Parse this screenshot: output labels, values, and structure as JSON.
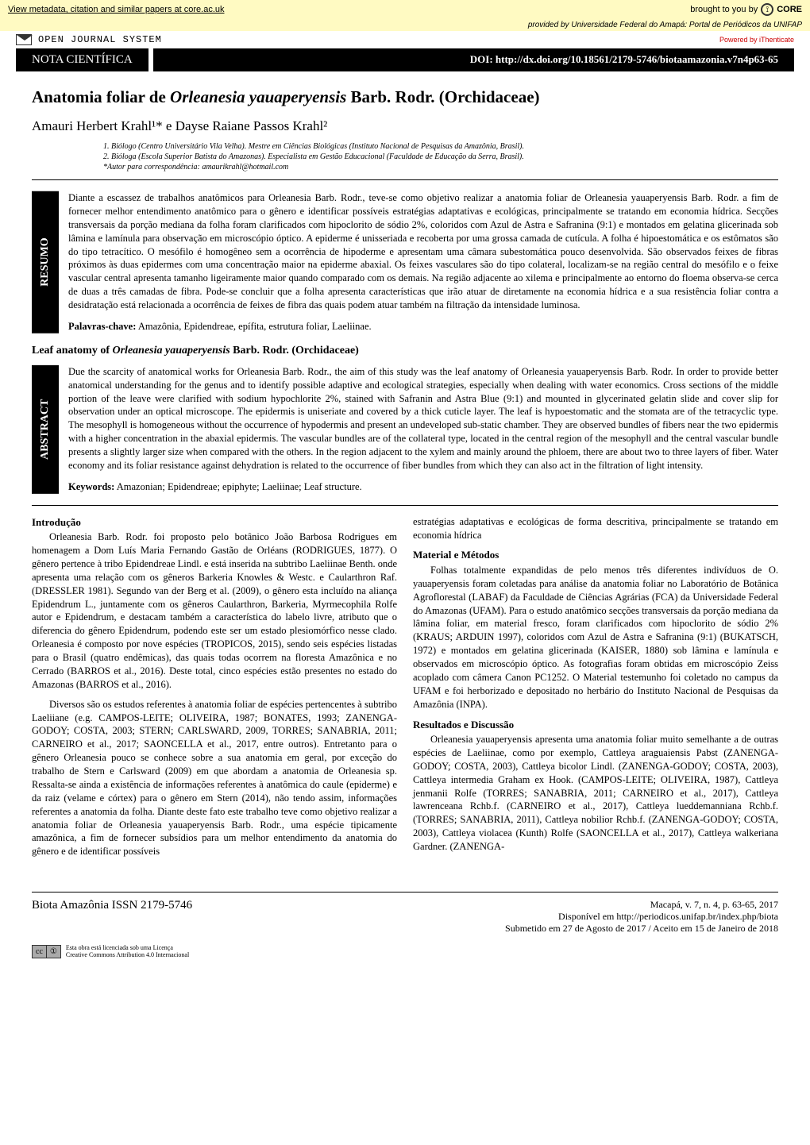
{
  "core": {
    "link_text": "View metadata, citation and similar papers at core.ac.uk",
    "brought": "brought to you by",
    "logo": "CORE"
  },
  "provided": "provided by Universidade Federal do Amapá: Portal de Periódicos da UNIFAP",
  "ojs": {
    "text": "OPEN JOURNAL SYSTEM",
    "powered": "Powered by iThenticate"
  },
  "header": {
    "nota": "NOTA CIENTÍFICA",
    "doi": "DOI: http://dx.doi.org/10.18561/2179-5746/biotaamazonia.v7n4p63-65"
  },
  "title": {
    "pre": "Anatomia foliar de ",
    "ital": "Orleanesia yauaperyensis",
    "post": " Barb. Rodr. (Orchidaceae)"
  },
  "authors": "Amauri Herbert Krahl¹* e Dayse Raiane Passos Krahl²",
  "affil": {
    "a1": "1. Biólogo (Centro Universitário Vila Velha). Mestre em Ciências Biológicas (Instituto Nacional de Pesquisas da Amazônia, Brasil).",
    "a2": "2. Bióloga (Escola Superior Batista do Amazonas). Especialista em Gestão Educacional (Faculdade de Educação da Serra, Brasil).",
    "a3": "*Autor para correspondência: amaurikrahl@hotmail.com"
  },
  "resumo": {
    "label": "RESUMO",
    "text": "Diante a escassez de trabalhos anatômicos para Orleanesia Barb. Rodr., teve-se como objetivo realizar a anatomia foliar de Orleanesia yauaperyensis Barb. Rodr. a fim de fornecer melhor entendimento anatômico para o gênero e identificar possíveis estratégias adaptativas e ecológicas, principalmente se tratando em economia hídrica. Secções transversais da porção mediana da folha foram clarificados com hipoclorito de sódio 2%, coloridos com Azul de Astra e Safranina (9:1) e montados em gelatina glicerinada sob lâmina e lamínula para observação em microscópio óptico. A epiderme é unisseriada e recoberta por uma grossa camada de cutícula. A folha é hipoestomática e os estômatos são do tipo tetracítico. O mesófilo é homogêneo sem a ocorrência de hipoderme e apresentam uma câmara subestomática pouco desenvolvida. São observados feixes de fibras próximos às duas epidermes com uma concentração maior na epiderme abaxial. Os feixes vasculares são do tipo colateral, localizam-se na região central do mesófilo e o feixe vascular central apresenta tamanho ligeiramente maior quando comparado com os demais. Na região adjacente ao xilema e principalmente ao entorno do floema observa-se cerca de duas a três camadas de fibra. Pode-se concluir que a folha apresenta características que irão atuar de diretamente na economia hídrica e a sua resistência foliar contra a desidratação está relacionada a ocorrência de feixes de fibra das quais podem atuar também na filtração da intensidade luminosa.",
    "kw_label": "Palavras-chave:",
    "kw": " Amazônia, Epidendreae, epífita, estrutura foliar, Laeliinae."
  },
  "en_title": {
    "pre": "Leaf anatomy of ",
    "ital": "Orleanesia yauaperyensis",
    "post": " Barb. Rodr. (Orchidaceae)"
  },
  "abstract": {
    "label": "ABSTRACT",
    "text": "Due the scarcity of anatomical works for Orleanesia Barb. Rodr., the aim of this study was the leaf anatomy of Orleanesia yauaperyensis Barb. Rodr. In order to provide better anatomical understanding for the genus and to identify possible adaptive and ecological strategies, especially when dealing with water economics. Cross sections of the middle portion of the leave were clarified with sodium hypochlorite 2%, stained with Safranin and Astra Blue (9:1) and mounted in glycerinated gelatin slide and cover slip for observation under an optical microscope. The epidermis is uniseriate and covered by a thick cuticle layer. The leaf is hypoestomatic and the stomata are of the tetracyclic type. The mesophyll is homogeneous without the occurrence of hypodermis and present an undeveloped sub-static chamber. They are observed bundles of fibers near the two epidermis with a higher concentration in the abaxial epidermis. The vascular bundles are of the collateral type, located in the central region of the mesophyll and the central vascular bundle presents a slightly larger size when compared with the others. In the region adjacent to the xylem and mainly around the phloem, there are about two to three layers of fiber. Water economy and its foliar resistance against dehydration is related to the occurrence of fiber bundles from which they can also act in the filtration of light intensity.",
    "kw_label": "Keywords:",
    "kw": " Amazonian; Epidendreae; epiphyte; Laeliinae; Leaf structure."
  },
  "body": {
    "intro_h": "Introdução",
    "intro_p1": "Orleanesia Barb. Rodr. foi proposto pelo botânico João Barbosa Rodrigues em homenagem a Dom Luís Maria Fernando Gastão de Orléans (RODRIGUES, 1877). O gênero pertence à tribo Epidendreae Lindl. e está inserida na subtribo Laeliinae Benth. onde apresenta uma relação com os gêneros Barkeria Knowles & Westc. e Caularthron Raf. (DRESSLER 1981). Segundo van der Berg et al. (2009), o gênero esta incluído na aliança Epidendrum L., juntamente com os gêneros Caularthron, Barkeria, Myrmecophila Rolfe autor e Epidendrum, e destacam também a característica do labelo livre, atributo que o diferencia do gênero Epidendrum, podendo este ser um estado plesiomórfico nesse clado. Orleanesia é composto por nove espécies (TROPICOS, 2015), sendo seis espécies listadas para o Brasil (quatro endêmicas), das quais todas ocorrem na floresta Amazônica e no Cerrado (BARROS et al., 2016). Deste total, cinco espécies estão presentes no estado do Amazonas (BARROS et al., 2016).",
    "intro_p2": "Diversos são os estudos referentes à anatomia foliar de espécies pertencentes à subtribo Laeliiane (e.g. CAMPOS-LEITE; OLIVEIRA, 1987; BONATES, 1993; ZANENGA-GODOY; COSTA, 2003; STERN; CARLSWARD, 2009, TORRES; SANABRIA, 2011; CARNEIRO et al., 2017; SAONCELLA et al., 2017, entre outros). Entretanto para o gênero Orleanesia pouco se conhece sobre a sua anatomia em geral, por exceção do trabalho de Stern e Carlsward (2009) em que abordam a anatomia de Orleanesia sp. Ressalta-se ainda a existência de informações referentes à anatômica do caule (epiderme) e da raiz (velame e córtex) para o gênero em Stern (2014), não tendo assim, informações referentes a anatomia da folha. Diante deste fato este trabalho teve como objetivo realizar a anatomia foliar de Orleanesia yauaperyensis Barb. Rodr., uma espécie tipicamente amazônica, a fim de fornecer subsídios para um melhor entendimento da anatomia do gênero e de identificar possíveis",
    "col2_p0": "estratégias adaptativas e ecológicas de forma descritiva, principalmente se tratando em economia hídrica",
    "mat_h": "Material e Métodos",
    "mat_p": "Folhas totalmente expandidas de pelo menos três diferentes indivíduos de O. yauaperyensis foram coletadas para análise da anatomia foliar no Laboratório de Botânica Agroflorestal (LABAF) da Faculdade de Ciências Agrárias (FCA) da Universidade Federal do Amazonas (UFAM). Para o estudo anatômico secções transversais da porção mediana da lâmina foliar, em material fresco, foram clarificados com hipoclorito de sódio 2% (KRAUS; ARDUIN 1997), coloridos com Azul de Astra e Safranina (9:1) (BUKATSCH, 1972) e montados em gelatina glicerinada (KAISER, 1880) sob lâmina e lamínula e observados em microscópio óptico. As fotografias foram obtidas em microscópio Zeiss acoplado com câmera Canon PC1252. O Material testemunho foi coletado no campus da UFAM e foi herborizado e depositado no herbário do Instituto Nacional de Pesquisas da Amazônia (INPA).",
    "res_h": "Resultados e Discussão",
    "res_p": "Orleanesia yauaperyensis apresenta uma anatomia foliar muito semelhante a de outras espécies de Laeliinae, como por exemplo, Cattleya araguaiensis Pabst (ZANENGA-GODOY; COSTA, 2003), Cattleya bicolor Lindl. (ZANENGA-GODOY; COSTA, 2003), Cattleya intermedia Graham ex Hook. (CAMPOS-LEITE; OLIVEIRA, 1987), Cattleya jenmanii Rolfe (TORRES; SANABRIA, 2011; CARNEIRO et al., 2017), Cattleya lawrenceana Rchb.f. (CARNEIRO et al., 2017), Cattleya lueddemanniana Rchb.f. (TORRES; SANABRIA, 2011), Cattleya nobilior Rchb.f. (ZANENGA-GODOY; COSTA, 2003), Cattleya violacea (Kunth) Rolfe (SAONCELLA et al., 2017), Cattleya walkeriana Gardner. (ZANENGA-"
  },
  "footer": {
    "journal": "Biota Amazônia  ISSN 2179-5746",
    "loc": "Macapá, v. 7, n. 4, p. 63-65, 2017",
    "url": "Disponível em http://periodicos.unifap.br/index.php/biota",
    "dates": "Submetido em 27 de Agosto de 2017 / Aceito em 15 de Janeiro de 2018",
    "cc1": "Esta obra está licenciada sob uma Licença",
    "cc2": "Creative Commons Attribution 4.0 Internacional"
  }
}
